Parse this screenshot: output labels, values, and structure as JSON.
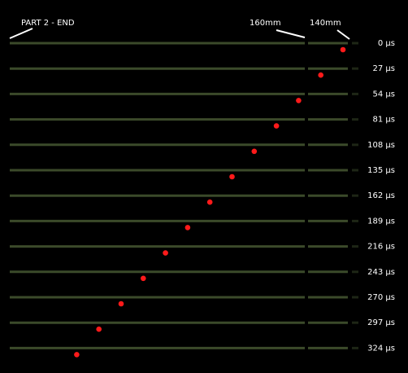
{
  "header": {
    "part": "PART 2 - END",
    "mark_160": "160mm",
    "mark_140": "140mm"
  },
  "frames": {
    "times": [
      "0 µs",
      "27 µs",
      "54 µs",
      "81 µs",
      "108 µs",
      "135 µs",
      "162 µs",
      "189 µs",
      "216 µs",
      "243 µs",
      "270 µs",
      "297 µs",
      "324 µs"
    ]
  }
}
